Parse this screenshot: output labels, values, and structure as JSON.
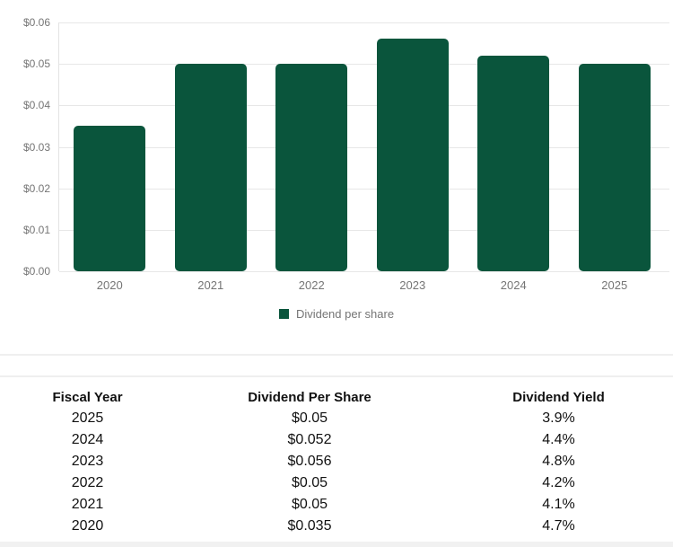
{
  "chart": {
    "legend_label": "Dividend per share",
    "bar_color": "#0a553c",
    "grid_color": "#e7e7e7",
    "axis_text_color": "#757575",
    "y_ticks": [
      "$0.06",
      "$0.05",
      "$0.04",
      "$0.03",
      "$0.02",
      "$0.01",
      "$0.00"
    ]
  },
  "chart_data": {
    "type": "bar",
    "categories": [
      "2020",
      "2021",
      "2022",
      "2023",
      "2024",
      "2025"
    ],
    "series": [
      {
        "name": "Dividend per share",
        "values": [
          0.035,
          0.05,
          0.05,
          0.056,
          0.052,
          0.05
        ]
      }
    ],
    "title": "",
    "xlabel": "",
    "ylabel": "",
    "ylim": [
      0,
      0.06
    ],
    "y_tick_labels": [
      "$0.00",
      "$0.01",
      "$0.02",
      "$0.03",
      "$0.04",
      "$0.05",
      "$0.06"
    ],
    "grid": true,
    "legend_position": "bottom"
  },
  "table": {
    "headers": [
      "Fiscal Year",
      "Dividend Per Share",
      "Dividend Yield"
    ],
    "rows": [
      {
        "year": "2025",
        "dps": "$0.05",
        "yield": "3.9%"
      },
      {
        "year": "2024",
        "dps": "$0.052",
        "yield": "4.4%"
      },
      {
        "year": "2023",
        "dps": "$0.056",
        "yield": "4.8%"
      },
      {
        "year": "2022",
        "dps": "$0.05",
        "yield": "4.2%"
      },
      {
        "year": "2021",
        "dps": "$0.05",
        "yield": "4.1%"
      },
      {
        "year": "2020",
        "dps": "$0.035",
        "yield": "4.7%"
      }
    ]
  }
}
